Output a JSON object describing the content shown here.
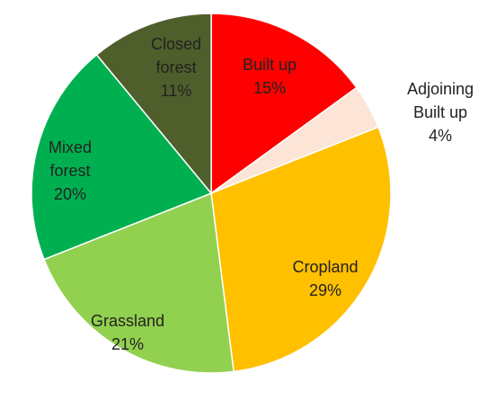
{
  "chart_data": {
    "type": "pie",
    "categories": [
      "Built up",
      "Adjoining Built up",
      "Cropland",
      "Grassland",
      "Mixed forest",
      "Closed forest"
    ],
    "values": [
      15,
      4,
      29,
      21,
      20,
      11
    ],
    "value_labels": [
      "15%",
      "4%",
      "29%",
      "21%",
      "20%",
      "11%"
    ],
    "colors": [
      "#ff0000",
      "#fce4d6",
      "#ffc000",
      "#92d050",
      "#00b050",
      "#4f5f2b"
    ]
  }
}
